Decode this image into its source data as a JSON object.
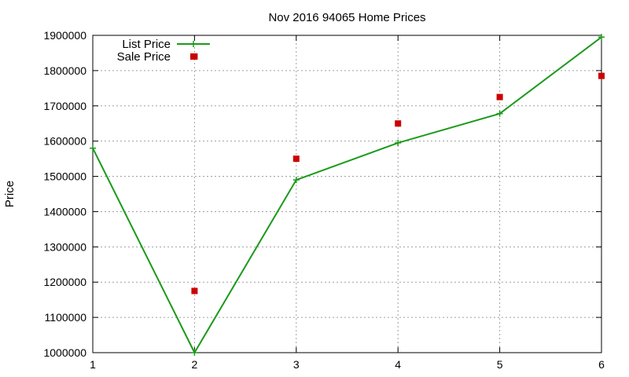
{
  "chart_data": {
    "type": "line",
    "title": "Nov 2016 94065 Home Prices",
    "xlabel": "",
    "ylabel": "Price",
    "x": [
      1,
      2,
      3,
      4,
      5,
      6
    ],
    "xlim": [
      1,
      6
    ],
    "ylim": [
      1000000,
      1900000
    ],
    "x_ticks": [
      "1",
      "2",
      "3",
      "4",
      "5",
      "6"
    ],
    "y_ticks": [
      "1000000",
      "1100000",
      "1200000",
      "1300000",
      "1400000",
      "1500000",
      "1600000",
      "1700000",
      "1800000",
      "1900000"
    ],
    "grid": true,
    "legend_position": "top-left",
    "series": [
      {
        "name": "List Price",
        "style": "line-with-plus-markers",
        "color": "#1a9a1a",
        "x": [
          1,
          2,
          3,
          4,
          5,
          6
        ],
        "values": [
          1580000,
          1000000,
          1490000,
          1595000,
          1678000,
          1895000
        ]
      },
      {
        "name": "Sale Price",
        "style": "square-markers",
        "color": "#cc0000",
        "x": [
          2,
          2,
          3,
          4,
          5,
          6
        ],
        "values": [
          1840000,
          1175000,
          1550000,
          1650000,
          1725000,
          1785000
        ]
      }
    ]
  }
}
